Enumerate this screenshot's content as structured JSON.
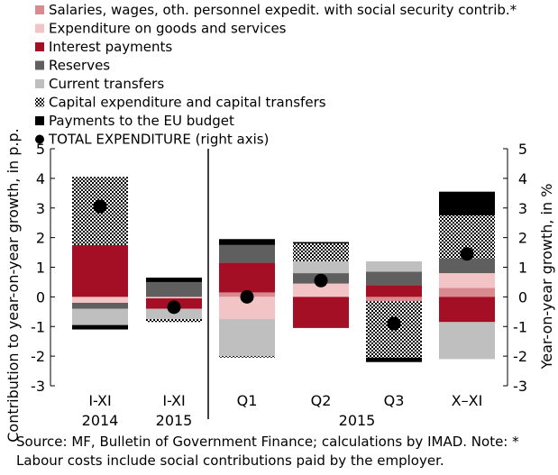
{
  "chart_data": {
    "type": "bar",
    "stacked": true,
    "categories": [
      {
        "label": "I-XI",
        "sub": "2014"
      },
      {
        "label": "I-XI",
        "sub": "2015"
      },
      {
        "label": "Q1",
        "sub": ""
      },
      {
        "label": "Q2",
        "sub": ""
      },
      {
        "label": "Q3",
        "sub": ""
      },
      {
        "label": "X–XI",
        "sub": ""
      }
    ],
    "group_label": "2015",
    "ylabel": "Contribution to year-on-year growth, in p.p.",
    "y2label": "Year-on-year growth, in %",
    "ylim": [
      -3,
      5
    ],
    "yticks": [
      "5",
      "4",
      "3",
      "2",
      "1",
      "0",
      "-1",
      "-2",
      "-3"
    ],
    "series": [
      {
        "name": "Salaries, wages, oth. personnel expedit. with social security contrib.*",
        "color": "#d98a8f",
        "pattern": "solid",
        "values": [
          0.0,
          0.0,
          0.15,
          0.0,
          -0.15,
          0.3
        ]
      },
      {
        "name": "Expenditure on goods and services",
        "color": "#f2c4c6",
        "pattern": "solid",
        "values": [
          -0.2,
          -0.05,
          -0.75,
          0.45,
          0.0,
          0.5
        ]
      },
      {
        "name": "Interest payments",
        "color": "#a50f25",
        "pattern": "solid",
        "values": [
          1.75,
          -0.35,
          1.0,
          -1.05,
          0.4,
          -0.85
        ]
      },
      {
        "name": "Reserves",
        "color": "#5f5f5f",
        "pattern": "solid",
        "values": [
          -0.2,
          0.5,
          0.6,
          0.35,
          0.45,
          0.5
        ]
      },
      {
        "name": "Current transfers",
        "color": "#bfbfbf",
        "pattern": "solid",
        "values": [
          -0.55,
          -0.35,
          -1.25,
          0.4,
          0.35,
          -1.25
        ]
      },
      {
        "name": "Capital expenditure and capital transfers",
        "color": "#000000",
        "pattern": "dots",
        "values": [
          2.3,
          -0.1,
          -0.05,
          0.6,
          -1.9,
          1.45
        ]
      },
      {
        "name": "Payments to the EU budget",
        "color": "#000000",
        "pattern": "solid",
        "values": [
          -0.15,
          0.15,
          0.2,
          0.05,
          -0.15,
          0.8
        ]
      }
    ],
    "total": {
      "name": "TOTAL EXPENDITURE (right axis)",
      "values": [
        3.05,
        -0.35,
        0.0,
        0.55,
        -0.9,
        1.45
      ]
    }
  },
  "note": {
    "line1": "Source: MF, Bulletin of Government Finance; calculations by IMAD. Note: *",
    "line2": "Labour costs include social contributions paid by the employer."
  }
}
